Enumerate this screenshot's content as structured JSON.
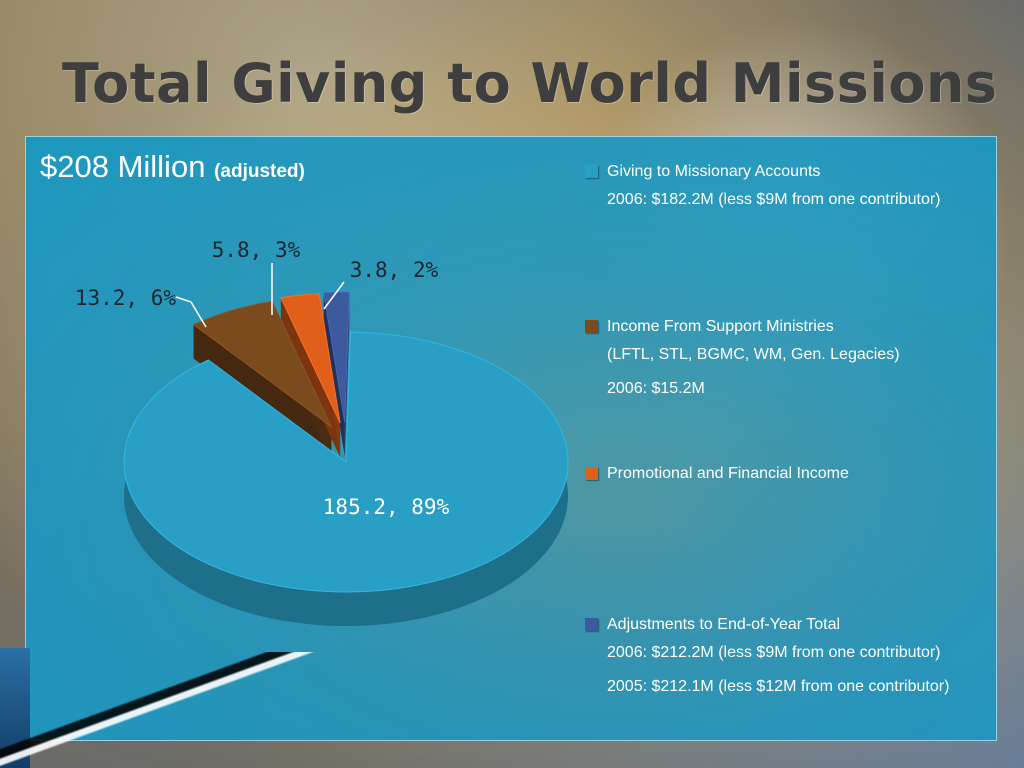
{
  "slide": {
    "title": "Total Giving to World Missions",
    "subtitle_main": "$208 Million",
    "subtitle_note": "(adjusted)"
  },
  "chart_data": {
    "type": "pie",
    "title": "",
    "slices": [
      {
        "label": "Giving to Missionary Accounts",
        "value": 185.2,
        "percent": 89,
        "data_label": "185.2, 89%",
        "color": "#2a9fc5"
      },
      {
        "label": "Income From Support Ministries",
        "value": 13.2,
        "percent": 6,
        "data_label": "13.2, 6%",
        "color": "#7b4a1d"
      },
      {
        "label": "Promotional and Financial Income",
        "value": 5.8,
        "percent": 3,
        "data_label": "5.8, 3%",
        "color": "#e0601b"
      },
      {
        "label": "Adjustments to End-of-Year Total",
        "value": 3.8,
        "percent": 2,
        "data_label": "3.8, 2%",
        "color": "#3d5a9e"
      }
    ],
    "legend": {
      "placement": "right",
      "entries": [
        {
          "name": "Giving to Missionary Accounts",
          "lines": [
            "2006: $182.2M (less $9M from one contributor)"
          ]
        },
        {
          "name": "Income From Support Ministries",
          "lines": [
            "(LFTL, STL, BGMC, WM, Gen. Legacies)",
            "2006: $15.2M"
          ]
        },
        {
          "name": "Promotional and Financial Income",
          "lines": []
        },
        {
          "name": "Adjustments to End-of-Year Total",
          "lines": [
            "2006: $212.2M (less $9M from one contributor)",
            "2005: $212.1M (less $12M from one contributor)"
          ]
        }
      ]
    }
  },
  "colors": {
    "panel": "#1f9ac2",
    "title_text": "#3e3e3e",
    "label_text": "#ffffff"
  }
}
